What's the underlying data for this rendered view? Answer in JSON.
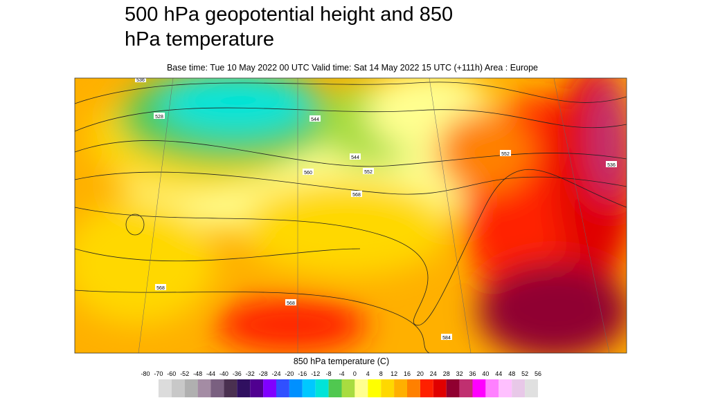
{
  "header": {
    "title_lines": [
      "500 hPa geopotential height and 850",
      "hPa temperature"
    ],
    "subtitle": "Base time: Tue 10 May 2022 00 UTC Valid time: Sat 14 May 2022 15 UTC (+111h) Area : Europe"
  },
  "map": {
    "contour_labels": [
      "568",
      "560",
      "552",
      "544",
      "536",
      "528",
      "568",
      "544",
      "552",
      "536",
      "568",
      "584"
    ]
  },
  "colorbar": {
    "label": "850 hPa temperature (C)",
    "ticks": [
      -80,
      -70,
      -60,
      -52,
      -48,
      -44,
      -40,
      -36,
      -32,
      -28,
      -24,
      -20,
      -16,
      -12,
      -8,
      -4,
      0,
      4,
      8,
      12,
      16,
      20,
      24,
      28,
      32,
      36,
      40,
      44,
      48,
      52,
      56
    ],
    "colors": [
      "#ffffff",
      "#dcdcdc",
      "#c8c8c8",
      "#b0b0b0",
      "#a48ca4",
      "#7a6080",
      "#4a3050",
      "#301060",
      "#500090",
      "#8000ff",
      "#3050ff",
      "#0090ff",
      "#00c8ff",
      "#00e4d8",
      "#50c850",
      "#a8dc40",
      "#ffff90",
      "#ffff00",
      "#ffd800",
      "#ffb000",
      "#ff8000",
      "#ff2000",
      "#e00000",
      "#900030",
      "#c03070",
      "#ff00ff",
      "#ff80ff",
      "#ffc0ff",
      "#e8c8e8",
      "#e0e0e0"
    ]
  }
}
